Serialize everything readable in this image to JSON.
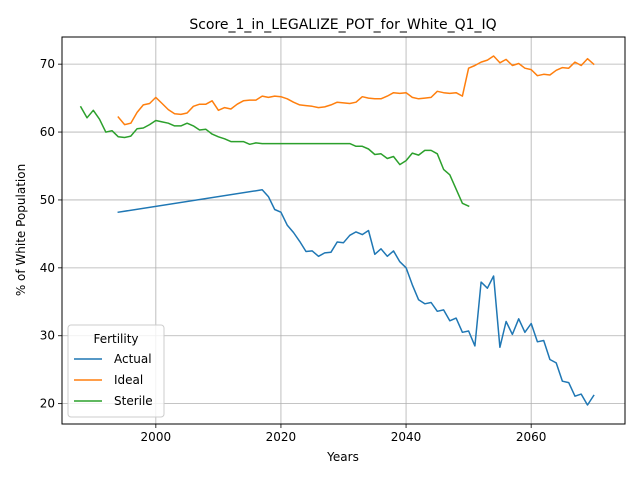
{
  "chart_data": {
    "type": "line",
    "title": "Score_1_in_LEGALIZE_POT_for_White_Q1_IQ",
    "xlabel": "Years",
    "ylabel": "% of White Population",
    "xlim": [
      1985,
      2075
    ],
    "ylim": [
      17,
      74
    ],
    "xticks": [
      2000,
      2020,
      2040,
      2060
    ],
    "yticks": [
      20,
      30,
      40,
      50,
      60,
      70
    ],
    "grid": true,
    "legend": {
      "title": "Fertility",
      "placement": "lower-left"
    },
    "series": [
      {
        "name": "Actual",
        "color": "#1f77b4",
        "x": [
          1994,
          2017,
          2018,
          2019,
          2020,
          2021,
          2022,
          2023,
          2024,
          2025,
          2026,
          2027,
          2028,
          2029,
          2030,
          2031,
          2032,
          2033,
          2034,
          2035,
          2036,
          2037,
          2038,
          2039,
          2040,
          2041,
          2042,
          2043,
          2044,
          2045,
          2046,
          2047,
          2048,
          2049,
          2050,
          2051,
          2052,
          2053,
          2054,
          2055,
          2056,
          2057,
          2058,
          2059,
          2060,
          2061,
          2062,
          2063,
          2064,
          2065,
          2066,
          2067,
          2068,
          2069,
          2070
        ],
        "y": [
          48.2,
          51.5,
          50.5,
          48.6,
          48.2,
          46.3,
          45.2,
          43.9,
          42.4,
          42.5,
          41.7,
          42.2,
          42.3,
          43.8,
          43.7,
          44.8,
          45.3,
          44.9,
          45.5,
          42.0,
          42.8,
          41.7,
          42.5,
          40.9,
          40.0,
          37.5,
          35.3,
          34.7,
          34.9,
          33.6,
          33.8,
          32.2,
          32.6,
          30.5,
          30.7,
          28.5,
          37.9,
          37.0,
          38.8,
          28.3,
          32.1,
          30.2,
          32.5,
          30.5,
          31.8,
          29.1,
          29.3,
          26.5,
          26.0,
          23.3,
          23.1,
          21.1,
          21.4,
          19.8,
          21.2
        ]
      },
      {
        "name": "Ideal",
        "color": "#ff7f0e",
        "x": [
          1994,
          1995,
          1996,
          1997,
          1998,
          1999,
          2000,
          2001,
          2002,
          2003,
          2004,
          2005,
          2006,
          2007,
          2008,
          2009,
          2010,
          2011,
          2012,
          2013,
          2014,
          2015,
          2016,
          2017,
          2018,
          2019,
          2020,
          2021,
          2022,
          2023,
          2024,
          2025,
          2026,
          2027,
          2028,
          2029,
          2030,
          2031,
          2032,
          2033,
          2034,
          2035,
          2036,
          2037,
          2038,
          2039,
          2040,
          2041,
          2042,
          2043,
          2044,
          2045,
          2046,
          2047,
          2048,
          2049,
          2050,
          2051,
          2052,
          2053,
          2054,
          2055,
          2056,
          2057,
          2058,
          2059,
          2060,
          2061,
          2062,
          2063,
          2064,
          2065,
          2066,
          2067,
          2068,
          2069,
          2070
        ],
        "y": [
          62.2,
          61.1,
          61.3,
          62.9,
          64.0,
          64.2,
          65.1,
          64.2,
          63.3,
          62.7,
          62.6,
          62.8,
          63.8,
          64.1,
          64.1,
          64.6,
          63.2,
          63.6,
          63.4,
          64.1,
          64.6,
          64.7,
          64.7,
          65.3,
          65.1,
          65.3,
          65.2,
          64.9,
          64.4,
          64.0,
          63.9,
          63.8,
          63.6,
          63.7,
          64.0,
          64.4,
          64.3,
          64.2,
          64.4,
          65.2,
          65.0,
          64.9,
          64.9,
          65.3,
          65.8,
          65.7,
          65.8,
          65.1,
          64.9,
          65.0,
          65.1,
          66.0,
          65.8,
          65.7,
          65.8,
          65.3,
          69.4,
          69.8,
          70.3,
          70.6,
          71.2,
          70.2,
          70.7,
          69.8,
          70.1,
          69.4,
          69.2,
          68.3,
          68.5,
          68.4,
          69.1,
          69.5,
          69.4,
          70.3,
          69.8,
          70.8,
          70.0
        ]
      },
      {
        "name": "Sterile",
        "color": "#2ca02c",
        "x": [
          1988,
          1989,
          1990,
          1991,
          1992,
          1993,
          1994,
          1995,
          1996,
          1997,
          1998,
          1999,
          2000,
          2001,
          2002,
          2003,
          2004,
          2005,
          2006,
          2007,
          2008,
          2009,
          2010,
          2011,
          2012,
          2013,
          2014,
          2015,
          2016,
          2017,
          2018,
          2019,
          2020,
          2021,
          2022,
          2023,
          2024,
          2025,
          2026,
          2027,
          2028,
          2029,
          2030,
          2031,
          2032,
          2033,
          2034,
          2035,
          2036,
          2037,
          2038,
          2039,
          2040,
          2041,
          2042,
          2043,
          2044,
          2045,
          2046,
          2047,
          2048,
          2049,
          2050
        ],
        "y": [
          63.7,
          62.1,
          63.2,
          61.9,
          60.0,
          60.2,
          59.3,
          59.2,
          59.4,
          60.5,
          60.6,
          61.1,
          61.7,
          61.5,
          61.3,
          60.9,
          60.9,
          61.3,
          60.9,
          60.3,
          60.4,
          59.7,
          59.3,
          59.0,
          58.6,
          58.6,
          58.6,
          58.2,
          58.4,
          58.3,
          58.3,
          58.3,
          58.3,
          58.3,
          58.3,
          58.3,
          58.3,
          58.3,
          58.3,
          58.3,
          58.3,
          58.3,
          58.3,
          58.3,
          57.9,
          57.9,
          57.5,
          56.7,
          56.8,
          56.1,
          56.4,
          55.2,
          55.8,
          56.9,
          56.6,
          57.3,
          57.3,
          56.8,
          54.5,
          53.7,
          51.6,
          49.5,
          49.1
        ]
      }
    ]
  }
}
